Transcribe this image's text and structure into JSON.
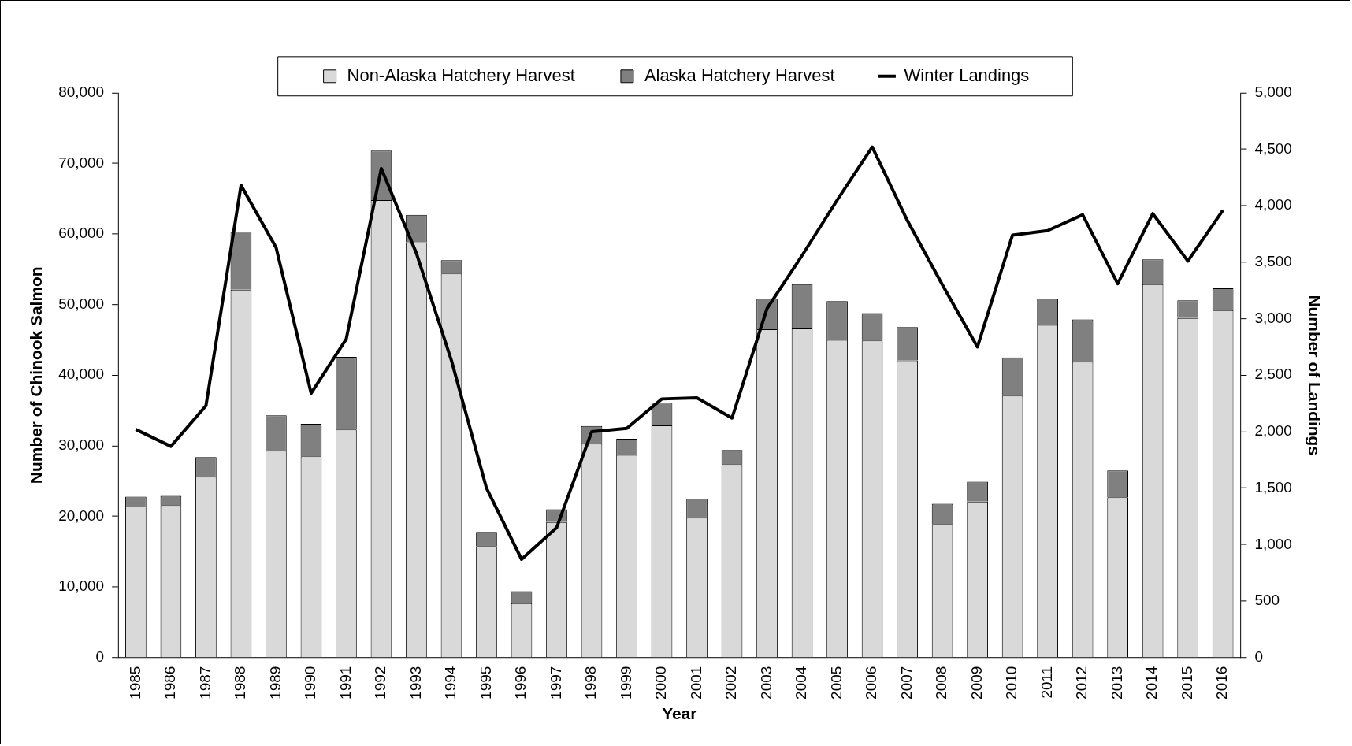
{
  "chart_data": {
    "type": "bar",
    "categories": [
      "1985",
      "1986",
      "1987",
      "1988",
      "1989",
      "1990",
      "1991",
      "1992",
      "1993",
      "1994",
      "1995",
      "1996",
      "1997",
      "1998",
      "1999",
      "2000",
      "2001",
      "2002",
      "2003",
      "2004",
      "2005",
      "2006",
      "2007",
      "2008",
      "2009",
      "2010",
      "2011",
      "2012",
      "2013",
      "2014",
      "2015",
      "2016"
    ],
    "series": [
      {
        "name": "Non-Alaska Hatchery Harvest",
        "color": "#d9d9d9",
        "values": [
          21400,
          21600,
          25600,
          52100,
          29300,
          28500,
          32300,
          64800,
          58800,
          54400,
          15800,
          7700,
          19200,
          30300,
          28700,
          32900,
          19800,
          27400,
          46500,
          46600,
          45000,
          44900,
          42100,
          18900,
          22100,
          37100,
          47100,
          41900,
          22700,
          52900,
          48100,
          49200
        ]
      },
      {
        "name": "Alaska Hatchery Harvest",
        "color": "#808080",
        "values": [
          1400,
          1300,
          2800,
          8200,
          5000,
          4600,
          10300,
          7000,
          3900,
          1900,
          2000,
          1700,
          1800,
          2500,
          2300,
          3200,
          2700,
          2000,
          4300,
          6300,
          5500,
          3900,
          4700,
          2900,
          2800,
          5400,
          3700,
          6000,
          3800,
          3500,
          2500,
          3100
        ]
      },
      {
        "name": "Winter Landings",
        "type": "line",
        "axis": "y2",
        "color": "#000000",
        "values": [
          2020,
          1870,
          2230,
          4180,
          3630,
          2340,
          2820,
          4330,
          3580,
          2630,
          1500,
          870,
          1150,
          2000,
          2030,
          2290,
          2300,
          2120,
          3090,
          3560,
          4050,
          4520,
          3870,
          3300,
          2750,
          3740,
          3780,
          3920,
          3310,
          3930,
          3510,
          3960
        ]
      }
    ],
    "stacked": true,
    "xlabel": "Year",
    "ylabel": "Number of Chinook Salmon",
    "y2label": "Number of Landings",
    "ylim": [
      0,
      80000
    ],
    "yticks": [
      0,
      {
        "value": 10000,
        "label": "10,000"
      },
      {
        "value": 20000,
        "label": "20,000"
      },
      {
        "value": 30000,
        "label": "30,000"
      },
      {
        "value": 40000,
        "label": "40,000"
      },
      {
        "value": 50000,
        "label": "50,000"
      },
      {
        "value": 60000,
        "label": "60,000"
      },
      {
        "value": 70000,
        "label": "70,000"
      },
      {
        "value": 80000,
        "label": "80,000"
      }
    ],
    "y2lim": [
      0,
      5000
    ],
    "y2ticks": [
      0,
      500,
      {
        "value": 1000,
        "label": "1,000"
      },
      {
        "value": 1500,
        "label": "1,500"
      },
      {
        "value": 2000,
        "label": "2,000"
      },
      {
        "value": 2500,
        "label": "2,500"
      },
      {
        "value": 3000,
        "label": "3,000"
      },
      {
        "value": 3500,
        "label": "3,500"
      },
      {
        "value": 4000,
        "label": "4,000"
      },
      {
        "value": 4500,
        "label": "4,500"
      },
      {
        "value": 5000,
        "label": "5,000"
      }
    ],
    "legend": "top",
    "grid": false,
    "marker": "none"
  }
}
